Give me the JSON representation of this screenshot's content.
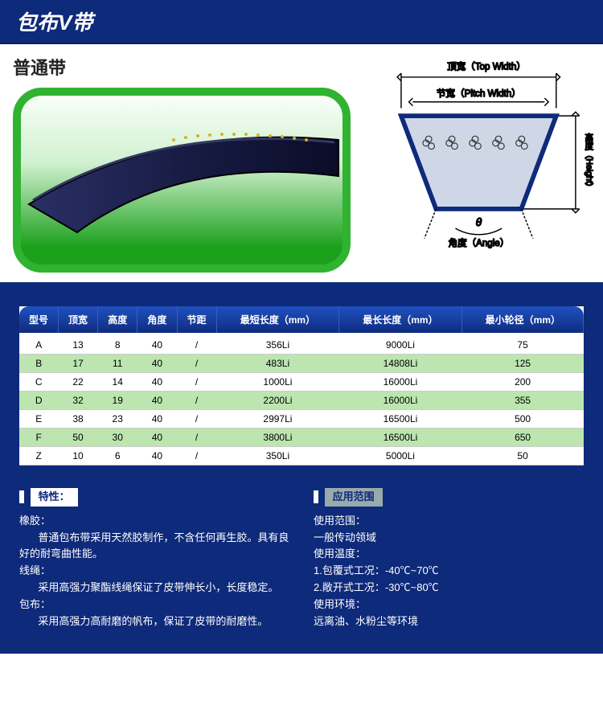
{
  "banner": {
    "title": "包布V带"
  },
  "subtitle": "普通带",
  "diagram": {
    "top_label": "顶宽（Top Width）",
    "pitch_label": "节宽（Pitch Width）",
    "height_label": "高度（Height）",
    "angle_label": "角度（Angle）",
    "theta": "θ",
    "stroke": "#0e2a7a",
    "fill": "#cfd6e6"
  },
  "table": {
    "header_bg": "linear-gradient(#2050c0,#0e2a7a)",
    "row_even_bg": "#bce5b0",
    "row_odd_bg": "#ffffff",
    "columns": [
      "型号",
      "顶宽",
      "高度",
      "角度",
      "节距",
      "最短长度（mm）",
      "最长长度（mm）",
      "最小轮径（mm）"
    ],
    "rows": [
      [
        "A",
        "13",
        "8",
        "40",
        "/",
        "356Li",
        "9000Li",
        "75"
      ],
      [
        "B",
        "17",
        "11",
        "40",
        "/",
        "483Li",
        "14808Li",
        "125"
      ],
      [
        "C",
        "22",
        "14",
        "40",
        "/",
        "1000Li",
        "16000Li",
        "200"
      ],
      [
        "D",
        "32",
        "19",
        "40",
        "/",
        "2200Li",
        "16000Li",
        "355"
      ],
      [
        "E",
        "38",
        "23",
        "40",
        "/",
        "2997Li",
        "16500Li",
        "500"
      ],
      [
        "F",
        "50",
        "30",
        "40",
        "/",
        "3800Li",
        "16500Li",
        "650"
      ],
      [
        "Z",
        "10",
        "6",
        "40",
        "/",
        "350Li",
        "5000Li",
        "50"
      ]
    ]
  },
  "features": {
    "heading": "特性：",
    "sections": [
      {
        "title": "橡胶：",
        "body": "普通包布带采用天然胶制作，不含任何再生胶。具有良好的耐弯曲性能。"
      },
      {
        "title": "线绳：",
        "body": "采用高强力聚酯线绳保证了皮带伸长小，长度稳定。"
      },
      {
        "title": "包布：",
        "body": "采用高强力高耐磨的帆布，保证了皮带的耐磨性。"
      }
    ]
  },
  "application": {
    "heading": "应用范围",
    "lines": [
      "使用范围：",
      "一般传动领域",
      "使用温度：",
      "1.包覆式工况：-40℃~70℃",
      "2.敞开式工况：-30℃~80℃",
      "使用环境：",
      "远离油、水粉尘等环境"
    ]
  },
  "colors": {
    "brand_blue": "#0e2a7a",
    "accent_green": "#30b330"
  }
}
